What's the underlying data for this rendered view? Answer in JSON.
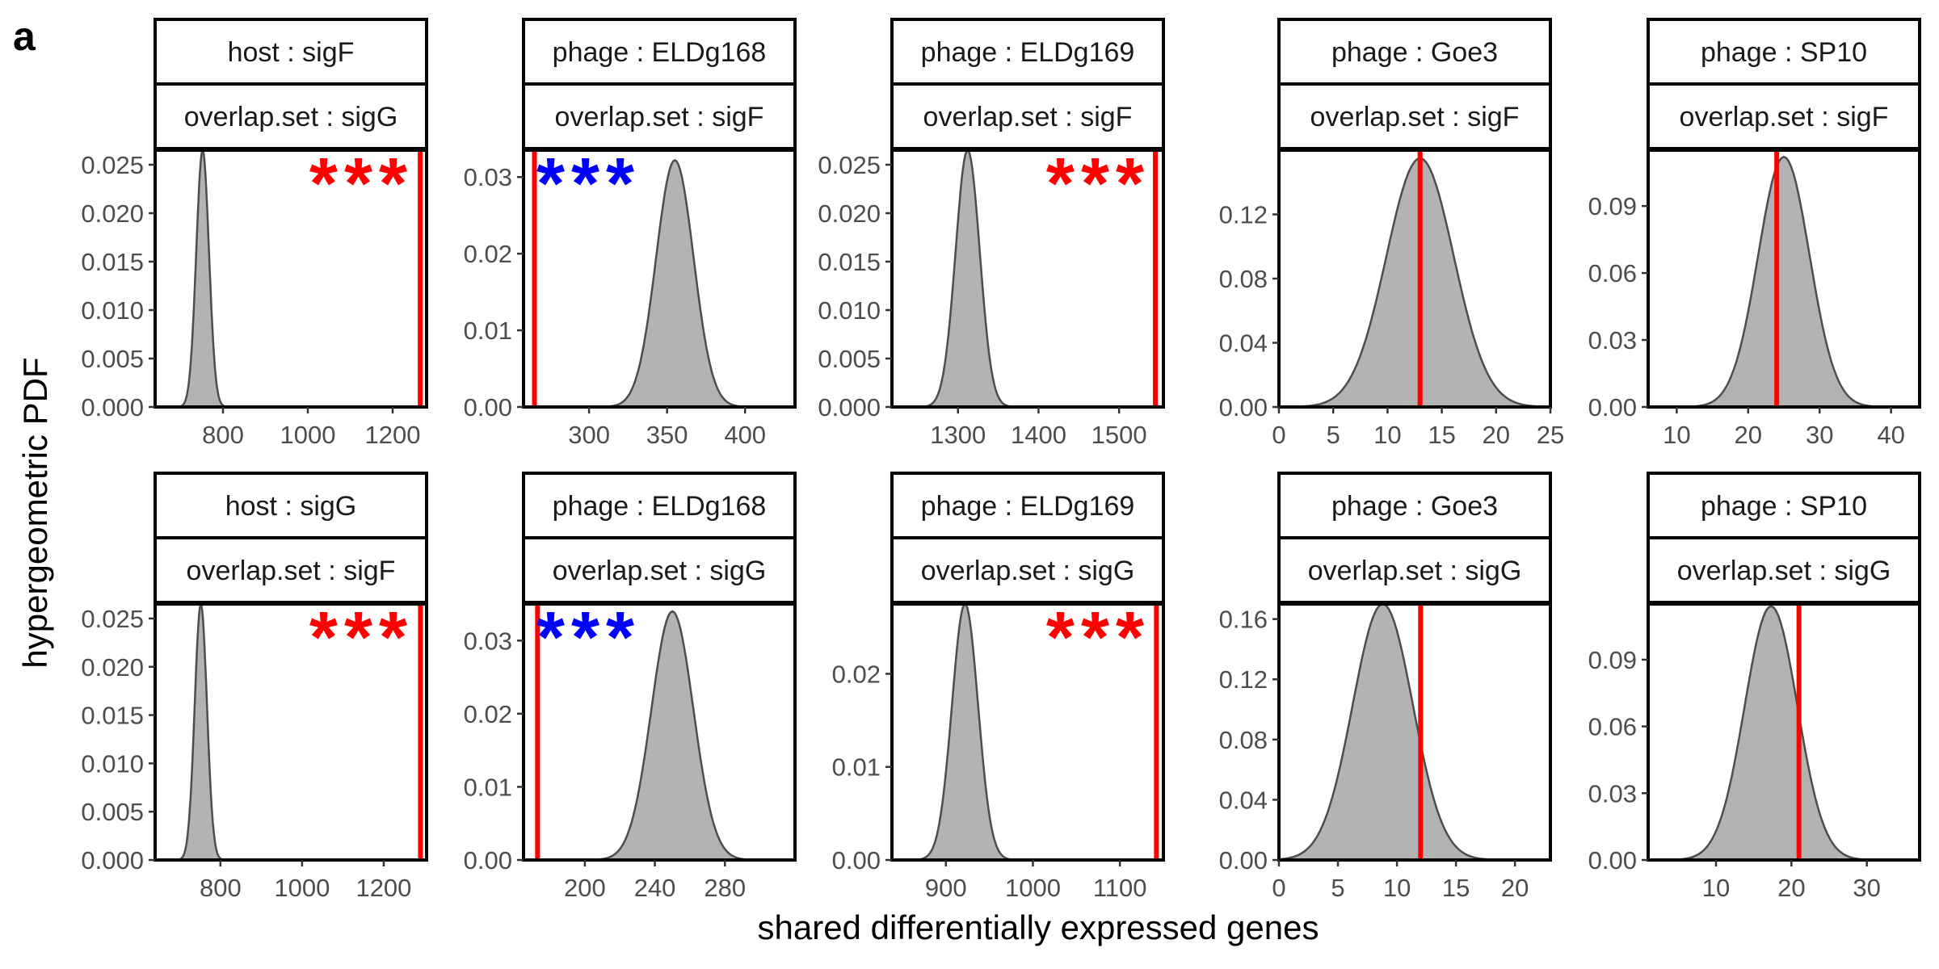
{
  "figure": {
    "panel_letter": "a",
    "xlabel": "shared differentially expressed genes",
    "ylabel": "hypergeometric PDF",
    "colors": {
      "density_fill": "#b3b3b3",
      "density_line": "#4d4d4d",
      "observed_line": "#ff0000",
      "enriched_stars": "#ff0000",
      "depleted_stars": "#0000ff"
    }
  },
  "chart_data": [
    {
      "type": "area",
      "strip_top": "host : sigF",
      "strip_bottom": "overlap.set : sigG",
      "xlim": [
        640,
        1280
      ],
      "ylim": [
        0,
        0.0265
      ],
      "xticks": [
        800,
        1000,
        1200
      ],
      "xtick_labels": [
        "800",
        "1000",
        "1200"
      ],
      "yticks": [
        0,
        0.005,
        0.01,
        0.015,
        0.02,
        0.025
      ],
      "ytick_labels": [
        "0.000",
        "0.005",
        "0.010",
        "0.015",
        "0.020",
        "0.025"
      ],
      "dist_mean": 752,
      "dist_sd": 15,
      "dist_peak": 0.0265,
      "observed": 1265,
      "significance": "***",
      "significance_color": "#ff0000"
    },
    {
      "type": "area",
      "strip_top": "phage : ELDg168",
      "strip_bottom": "overlap.set : sigF",
      "xlim": [
        258,
        432
      ],
      "ylim": [
        0,
        0.0335
      ],
      "xticks": [
        300,
        350,
        400
      ],
      "xtick_labels": [
        "300",
        "350",
        "400"
      ],
      "yticks": [
        0,
        0.01,
        0.02,
        0.03
      ],
      "ytick_labels": [
        "0.00",
        "0.01",
        "0.02",
        "0.03"
      ],
      "dist_mean": 355,
      "dist_sd": 12,
      "dist_peak": 0.0322,
      "observed": 265,
      "significance": "***",
      "significance_color": "#0000ff"
    },
    {
      "type": "area",
      "strip_top": "phage : ELDg169",
      "strip_bottom": "overlap.set : sigF",
      "xlim": [
        1218,
        1555
      ],
      "ylim": [
        0,
        0.0265
      ],
      "xticks": [
        1300,
        1400,
        1500
      ],
      "xtick_labels": [
        "1300",
        "1400",
        "1500"
      ],
      "yticks": [
        0,
        0.005,
        0.01,
        0.015,
        0.02,
        0.025
      ],
      "ytick_labels": [
        "0.000",
        "0.005",
        "0.010",
        "0.015",
        "0.020",
        "0.025"
      ],
      "dist_mean": 1312,
      "dist_sd": 15,
      "dist_peak": 0.0265,
      "observed": 1545,
      "significance": "***",
      "significance_color": "#ff0000"
    },
    {
      "type": "area",
      "strip_top": "phage : Goe3",
      "strip_bottom": "overlap.set : sigF",
      "xlim": [
        0,
        25
      ],
      "ylim": [
        0,
        0.16
      ],
      "xticks": [
        0,
        5,
        10,
        15,
        20,
        25
      ],
      "xtick_labels": [
        "0",
        "5",
        "10",
        "15",
        "20",
        "25"
      ],
      "yticks": [
        0,
        0.04,
        0.08,
        0.12
      ],
      "ytick_labels": [
        "0.00",
        "0.04",
        "0.08",
        "0.12"
      ],
      "dist_mean": 13,
      "dist_sd": 3.1,
      "dist_peak": 0.155,
      "observed": 13,
      "significance": "",
      "significance_color": ""
    },
    {
      "type": "area",
      "strip_top": "phage : SP10",
      "strip_bottom": "overlap.set : sigF",
      "xlim": [
        6,
        44
      ],
      "ylim": [
        0,
        0.115
      ],
      "xticks": [
        10,
        20,
        30,
        40
      ],
      "xtick_labels": [
        "10",
        "20",
        "30",
        "40"
      ],
      "yticks": [
        0,
        0.03,
        0.06,
        0.09
      ],
      "ytick_labels": [
        "0.00",
        "0.03",
        "0.06",
        "0.09"
      ],
      "dist_mean": 25,
      "dist_sd": 3.6,
      "dist_peak": 0.112,
      "observed": 24,
      "significance": "",
      "significance_color": ""
    },
    {
      "type": "area",
      "strip_top": "host : sigG",
      "strip_bottom": "overlap.set : sigF",
      "xlim": [
        640,
        1305
      ],
      "ylim": [
        0,
        0.0265
      ],
      "xticks": [
        800,
        1000,
        1200
      ],
      "xtick_labels": [
        "800",
        "1000",
        "1200"
      ],
      "yticks": [
        0,
        0.005,
        0.01,
        0.015,
        0.02,
        0.025
      ],
      "ytick_labels": [
        "0.000",
        "0.005",
        "0.010",
        "0.015",
        "0.020",
        "0.025"
      ],
      "dist_mean": 752,
      "dist_sd": 15,
      "dist_peak": 0.0265,
      "observed": 1290,
      "significance": "***",
      "significance_color": "#ff0000"
    },
    {
      "type": "area",
      "strip_top": "phage : ELDg168",
      "strip_bottom": "overlap.set : sigG",
      "xlim": [
        165,
        320
      ],
      "ylim": [
        0,
        0.035
      ],
      "xticks": [
        200,
        240,
        280
      ],
      "xtick_labels": [
        "200",
        "240",
        "280"
      ],
      "yticks": [
        0,
        0.01,
        0.02,
        0.03
      ],
      "ytick_labels": [
        "0.00",
        "0.01",
        "0.02",
        "0.03"
      ],
      "dist_mean": 250,
      "dist_sd": 12,
      "dist_peak": 0.034,
      "observed": 173,
      "significance": "***",
      "significance_color": "#0000ff"
    },
    {
      "type": "area",
      "strip_top": "phage : ELDg169",
      "strip_bottom": "overlap.set : sigG",
      "xlim": [
        838,
        1150
      ],
      "ylim": [
        0,
        0.0275
      ],
      "xticks": [
        900,
        1000,
        1100
      ],
      "xtick_labels": [
        "900",
        "1000",
        "1100"
      ],
      "yticks": [
        0,
        0.01,
        0.02
      ],
      "ytick_labels": [
        "0.00",
        "0.01",
        "0.02"
      ],
      "dist_mean": 922,
      "dist_sd": 15,
      "dist_peak": 0.0275,
      "observed": 1142,
      "significance": "***",
      "significance_color": "#ff0000"
    },
    {
      "type": "area",
      "strip_top": "phage : Goe3",
      "strip_bottom": "overlap.set : sigG",
      "xlim": [
        0,
        23
      ],
      "ylim": [
        0,
        0.17
      ],
      "xticks": [
        0,
        5,
        10,
        15,
        20
      ],
      "xtick_labels": [
        "0",
        "5",
        "10",
        "15",
        "20"
      ],
      "yticks": [
        0,
        0.04,
        0.08,
        0.12,
        0.16
      ],
      "ytick_labels": [
        "0.00",
        "0.04",
        "0.08",
        "0.12",
        "0.16"
      ],
      "dist_mean": 8.8,
      "dist_sd": 2.55,
      "dist_peak": 0.17,
      "observed": 12,
      "significance": "",
      "significance_color": ""
    },
    {
      "type": "area",
      "strip_top": "phage : SP10",
      "strip_bottom": "overlap.set : sigG",
      "xlim": [
        1,
        37
      ],
      "ylim": [
        0,
        0.115
      ],
      "xticks": [
        10,
        20,
        30
      ],
      "xtick_labels": [
        "10",
        "20",
        "30"
      ],
      "yticks": [
        0,
        0.03,
        0.06,
        0.09
      ],
      "ytick_labels": [
        "0.00",
        "0.03",
        "0.06",
        "0.09"
      ],
      "dist_mean": 17.3,
      "dist_sd": 3.5,
      "dist_peak": 0.114,
      "observed": 21,
      "significance": "",
      "significance_color": ""
    }
  ]
}
